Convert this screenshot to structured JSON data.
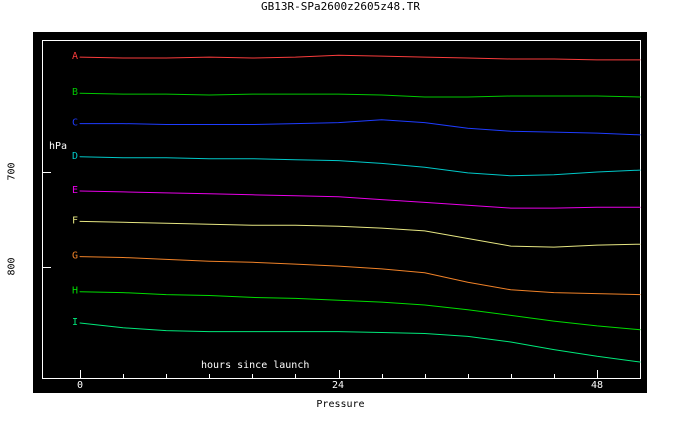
{
  "title": "GB13R-SPa2600z2605z48.TR",
  "axes": {
    "y_unit": "hPa",
    "x_title": "hours since launch",
    "bottom_title": "Pressure",
    "x_tick_labels": [
      "0",
      "24",
      "48"
    ],
    "y_tick_labels": [
      "700",
      "800"
    ]
  },
  "colors": {
    "background_panel": "#000000",
    "frame": "#ffffff",
    "outer_background": "#ffffff",
    "outer_text": "#000000",
    "inner_text": "#ffffff"
  },
  "chart_data": {
    "type": "line",
    "title": "GB13R-SPa2600z2605z48.TR",
    "xlabel": "hours since launch",
    "caption": "Pressure",
    "ylabel_unit": "hPa",
    "x_ticks": [
      0,
      24,
      48
    ],
    "x_minor_tick_step": 4,
    "y_ticks": [
      700,
      800
    ],
    "y_axis_inverted": true,
    "x_range": [
      0,
      52
    ],
    "y_range_visible": [
      560,
      920
    ],
    "grid": false,
    "legend_position": "left-of-line-start",
    "hours": [
      0,
      4,
      8,
      12,
      16,
      20,
      24,
      28,
      32,
      36,
      40,
      44,
      48,
      52
    ],
    "series": [
      {
        "label": "A",
        "color": "#fa3c3c",
        "pressure_hPa": [
          579,
          580,
          580,
          579,
          580,
          579,
          577,
          578,
          579,
          580,
          581,
          581,
          582,
          582
        ]
      },
      {
        "label": "B",
        "color": "#00c800",
        "pressure_hPa": [
          617,
          618,
          618,
          619,
          618,
          618,
          618,
          619,
          621,
          621,
          620,
          620,
          620,
          621
        ]
      },
      {
        "label": "C",
        "color": "#1e3cff",
        "pressure_hPa": [
          649,
          649,
          650,
          650,
          650,
          649,
          648,
          645,
          648,
          654,
          657,
          658,
          659,
          661
        ]
      },
      {
        "label": "D",
        "color": "#00c8c8",
        "pressure_hPa": [
          684,
          685,
          685,
          686,
          686,
          687,
          688,
          691,
          695,
          701,
          704,
          703,
          700,
          698
        ]
      },
      {
        "label": "E",
        "color": "#e800e8",
        "pressure_hPa": [
          720,
          721,
          722,
          723,
          724,
          725,
          726,
          729,
          732,
          735,
          738,
          738,
          737,
          737
        ]
      },
      {
        "label": "F",
        "color": "#e6e682",
        "pressure_hPa": [
          752,
          753,
          754,
          755,
          756,
          756,
          757,
          759,
          762,
          770,
          778,
          779,
          777,
          776
        ]
      },
      {
        "label": "G",
        "color": "#f08228",
        "pressure_hPa": [
          789,
          790,
          792,
          794,
          795,
          797,
          799,
          802,
          806,
          816,
          824,
          827,
          828,
          829
        ]
      },
      {
        "label": "H",
        "color": "#00dc00",
        "pressure_hPa": [
          826,
          827,
          829,
          830,
          832,
          833,
          835,
          837,
          840,
          845,
          851,
          857,
          862,
          866
        ]
      },
      {
        "label": "I",
        "color": "#00e87a",
        "pressure_hPa": [
          859,
          864,
          867,
          868,
          868,
          868,
          868,
          869,
          870,
          873,
          879,
          887,
          894,
          900
        ]
      }
    ]
  }
}
